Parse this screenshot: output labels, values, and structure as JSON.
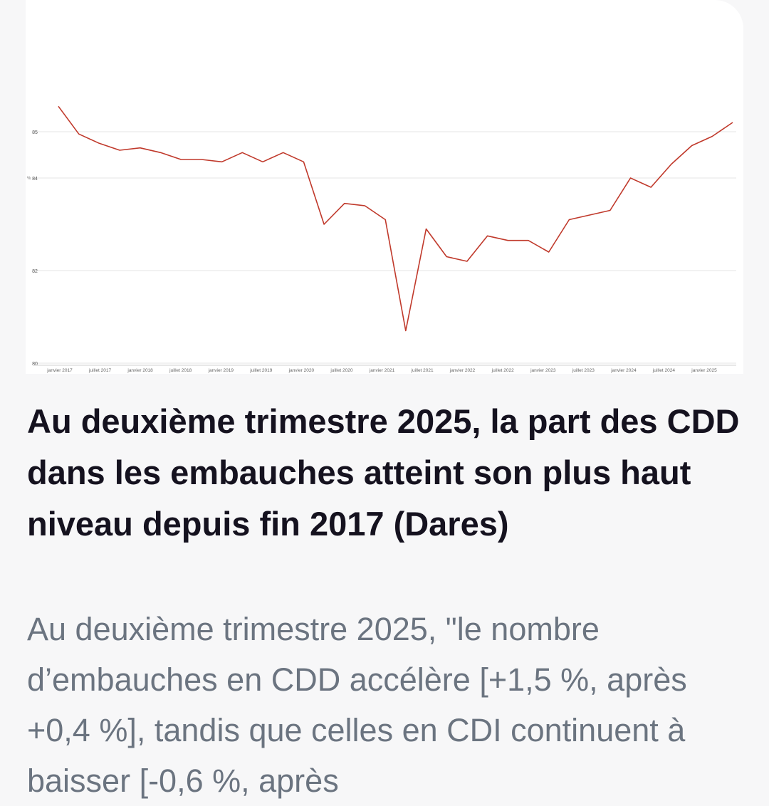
{
  "article": {
    "title": "Au deuxième trimestre 2025, la part des CDD dans les embauches atteint son plus haut niveau depuis fin 2017 (Dares)",
    "summary": "Au deuxième trimestre 2025, \"le nombre d’embauches en CDD accélère [+1,5 %, après +0,4 %], tandis que celles en CDI continuent à baisser [-0,6 %, après"
  },
  "chart_data": {
    "type": "line",
    "title": "",
    "xlabel": "",
    "ylabel": "%",
    "ylim": [
      80,
      86
    ],
    "yticks": [
      80,
      82,
      84,
      85
    ],
    "grid": true,
    "line_color": "#c0392b",
    "x_tick_labels": [
      "janvier 2017",
      "juillet 2017",
      "janvier 2018",
      "juillet 2018",
      "janvier 2019",
      "juillet 2019",
      "janvier 2020",
      "juillet 2020",
      "janvier 2021",
      "juillet 2021",
      "janvier 2022",
      "juillet 2022",
      "janvier 2023",
      "juillet 2023",
      "janvier 2024",
      "juillet 2024",
      "janvier 2025"
    ],
    "series": [
      {
        "values": [
          85.55,
          84.95,
          84.75,
          84.6,
          84.65,
          84.55,
          84.4,
          84.4,
          84.35,
          84.55,
          84.35,
          84.55,
          84.35,
          83.0,
          83.45,
          83.4,
          83.1,
          80.7,
          82.9,
          82.3,
          82.2,
          82.75,
          82.65,
          82.65,
          82.4,
          83.1,
          83.2,
          83.3,
          84.0,
          83.8,
          84.3,
          84.7,
          84.9,
          85.2
        ]
      }
    ]
  }
}
